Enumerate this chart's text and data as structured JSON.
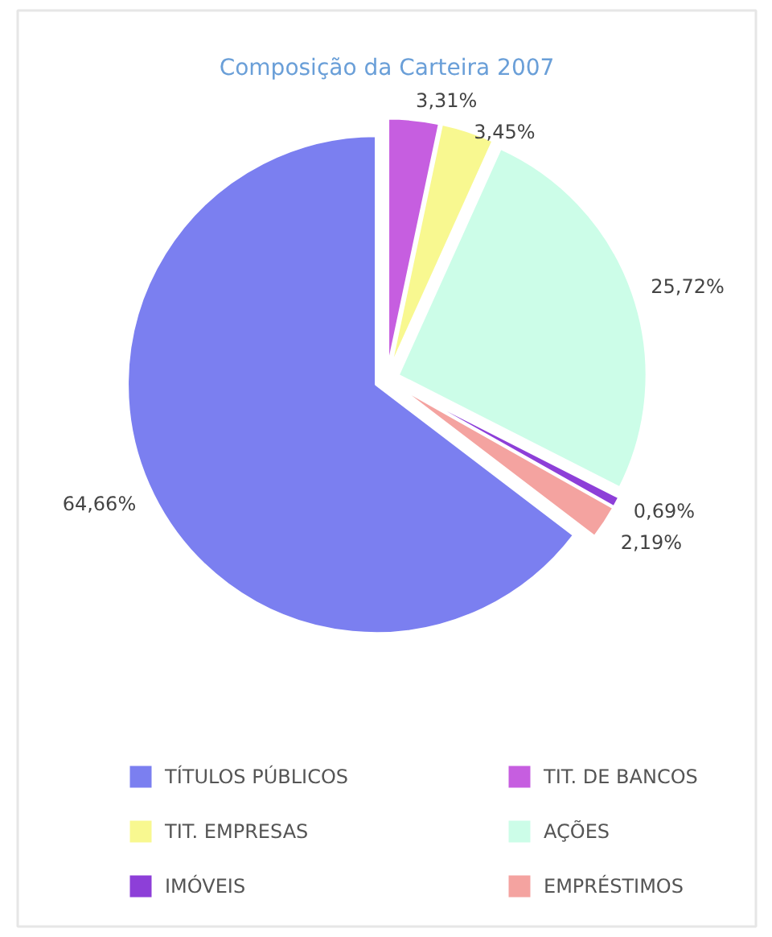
{
  "chart_data": {
    "type": "pie",
    "title": "Composição da Carteira 2007",
    "categories": [
      "TÍTULOS PÚBLICOS",
      "TIT. DE BANCOS",
      "TIT. EMPRESAS",
      "AÇÕES",
      "IMÓVEIS",
      "EMPRÉSTIMOS"
    ],
    "values": [
      64.66,
      3.31,
      3.45,
      25.72,
      0.69,
      2.19
    ],
    "value_labels": [
      "64,66%",
      "3,31%",
      "3,45%",
      "25,72%",
      "0,69%",
      "2,19%"
    ],
    "colors": [
      "#7b7ff0",
      "#c65ee0",
      "#f8f890",
      "#ccfde8",
      "#8d3fd8",
      "#f4a3a0"
    ],
    "legend": "bottom"
  }
}
